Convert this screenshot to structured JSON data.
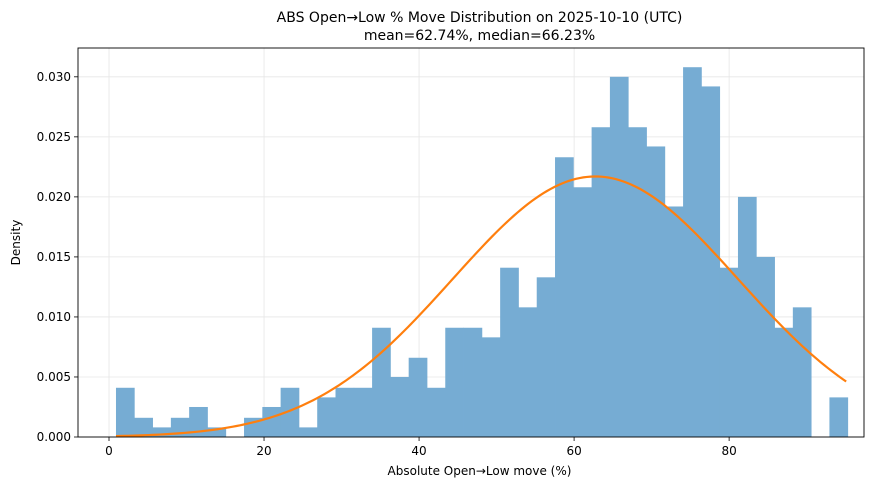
{
  "chart_data": {
    "type": "bar",
    "title": "ABS Open→Low % Move Distribution on 2025-10-10 (UTC)",
    "subtitle": "mean=62.74%, median=66.23%",
    "xlabel": "Absolute Open→Low move (%)",
    "ylabel": "Density",
    "xlim": [
      -4,
      97.4
    ],
    "ylim": [
      0,
      0.0324
    ],
    "xticks": [
      0,
      20,
      40,
      60,
      80
    ],
    "yticks": [
      0.0,
      0.005,
      0.01,
      0.015,
      0.02,
      0.025,
      0.03
    ],
    "ytick_labels": [
      "0.000",
      "0.005",
      "0.010",
      "0.015",
      "0.020",
      "0.025",
      "0.030"
    ],
    "grid": true,
    "bin_width": 2.36,
    "bins_start": 0.9,
    "histogram_values": [
      0.0041,
      0.0016,
      0.0008,
      0.0016,
      0.0025,
      0.0008,
      0.0,
      0.0016,
      0.0025,
      0.0041,
      0.0008,
      0.0033,
      0.0041,
      0.0041,
      0.0091,
      0.005,
      0.0066,
      0.0041,
      0.0091,
      0.0091,
      0.0083,
      0.0141,
      0.0108,
      0.0133,
      0.0233,
      0.0208,
      0.0258,
      0.03,
      0.0258,
      0.0242,
      0.0192,
      0.0308,
      0.0292,
      0.0141,
      0.02,
      0.015,
      0.0091,
      0.0108,
      0.0,
      0.0033
    ],
    "kde": {
      "mean": 62.74,
      "sd": 18.4,
      "scale": 0.0217,
      "x_start": 0.9,
      "x_end": 95.1
    },
    "colors": {
      "bars": "#76acd3",
      "curve": "#ff7f0e",
      "grid": "#e6e6e6"
    }
  }
}
